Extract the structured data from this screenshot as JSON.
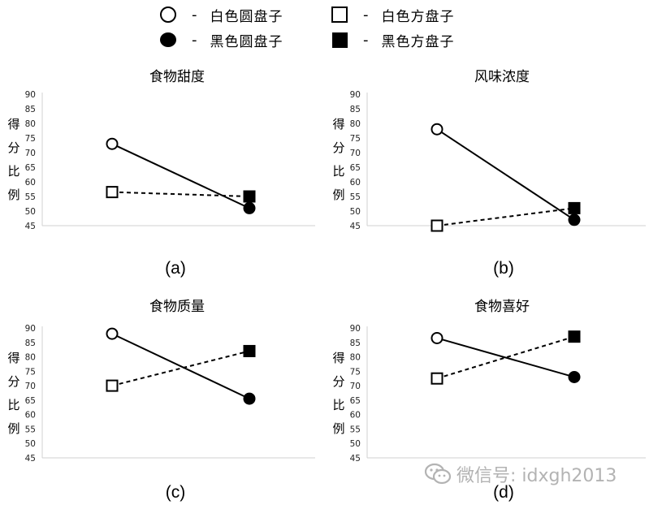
{
  "legend": {
    "separator": "-",
    "items": [
      {
        "label": "白色圆盘子",
        "marker": "circle",
        "fill": "open"
      },
      {
        "label": "白色方盘子",
        "marker": "square",
        "fill": "open"
      },
      {
        "label": "黑色圆盘子",
        "marker": "circle",
        "fill": "filled"
      },
      {
        "label": "黑色方盘子",
        "marker": "square",
        "fill": "filled"
      }
    ]
  },
  "ylabel_chars": [
    "得",
    "分",
    "比",
    "例"
  ],
  "watermark": {
    "text": "微信号: idxgh2013",
    "icon": "wechat-icon",
    "color": "#b3b3b3"
  },
  "chart_data": [
    {
      "type": "line",
      "title": "食物甜度",
      "caption": "(a)",
      "ylim": [
        45,
        90
      ],
      "yticks": [
        45,
        50,
        55,
        60,
        65,
        70,
        75,
        80,
        85,
        90
      ],
      "grid": false,
      "series": [
        {
          "shape": "circle",
          "style": "solid",
          "points": [
            {
              "y": 73,
              "fill": "open"
            },
            {
              "y": 51,
              "fill": "filled"
            }
          ]
        },
        {
          "shape": "square",
          "style": "dashed",
          "points": [
            {
              "y": 56.5,
              "fill": "open"
            },
            {
              "y": 55,
              "fill": "filled"
            }
          ]
        }
      ]
    },
    {
      "type": "line",
      "title": "风味浓度",
      "caption": "(b)",
      "ylim": [
        45,
        90
      ],
      "yticks": [
        45,
        50,
        55,
        60,
        65,
        70,
        75,
        80,
        85,
        90
      ],
      "grid": false,
      "series": [
        {
          "shape": "circle",
          "style": "solid",
          "points": [
            {
              "y": 78,
              "fill": "open"
            },
            {
              "y": 47,
              "fill": "filled"
            }
          ]
        },
        {
          "shape": "square",
          "style": "dashed",
          "points": [
            {
              "y": 45,
              "fill": "open"
            },
            {
              "y": 51,
              "fill": "filled"
            }
          ]
        }
      ]
    },
    {
      "type": "line",
      "title": "食物质量",
      "caption": "(c)",
      "ylim": [
        45,
        90
      ],
      "yticks": [
        45,
        50,
        55,
        60,
        65,
        70,
        75,
        80,
        85,
        90
      ],
      "grid": false,
      "series": [
        {
          "shape": "circle",
          "style": "solid",
          "points": [
            {
              "y": 88,
              "fill": "open"
            },
            {
              "y": 65.5,
              "fill": "filled"
            }
          ]
        },
        {
          "shape": "square",
          "style": "dashed",
          "points": [
            {
              "y": 70,
              "fill": "open"
            },
            {
              "y": 82,
              "fill": "filled"
            }
          ]
        }
      ]
    },
    {
      "type": "line",
      "title": "食物喜好",
      "caption": "(d)",
      "ylim": [
        45,
        90
      ],
      "yticks": [
        45,
        50,
        55,
        60,
        65,
        70,
        75,
        80,
        85,
        90
      ],
      "grid": false,
      "series": [
        {
          "shape": "circle",
          "style": "solid",
          "points": [
            {
              "y": 86.5,
              "fill": "open"
            },
            {
              "y": 73,
              "fill": "filled"
            }
          ]
        },
        {
          "shape": "square",
          "style": "dashed",
          "points": [
            {
              "y": 72.5,
              "fill": "open"
            },
            {
              "y": 87,
              "fill": "filled"
            }
          ]
        }
      ]
    }
  ]
}
